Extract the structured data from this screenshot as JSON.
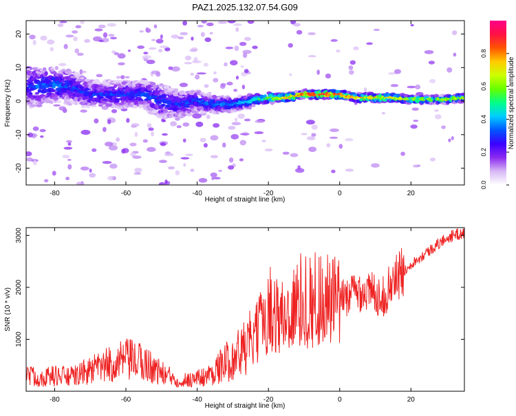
{
  "title": "PAZ1.2025.132.07.54.G09",
  "colors": {
    "snr_line": "#ee2222",
    "axis": "#000000",
    "colormap": [
      "#ffffff",
      "#d7b8f5",
      "#8c2bf0",
      "#3b00ff",
      "#0055ff",
      "#00ccff",
      "#00ff88",
      "#66ff00",
      "#ccff00",
      "#ffcc00",
      "#ff5500",
      "#ff1144",
      "#ff0088"
    ]
  },
  "chart_data": [
    {
      "type": "heatmap",
      "title": "",
      "xlabel": "Height of straight line (km)",
      "ylabel": "Frequency (Hz)",
      "xlim": [
        -88,
        35
      ],
      "ylim": [
        -25,
        24
      ],
      "xticks": [
        -80,
        -60,
        -40,
        -20,
        0,
        20
      ],
      "yticks": [
        -20,
        -10,
        0,
        10,
        20
      ],
      "colorbar": {
        "label": "Normalized spectral amplitude",
        "range": [
          0,
          1
        ],
        "ticks": [
          "0.0",
          "0.2",
          "0.4",
          "0.6",
          "0.8"
        ]
      },
      "ridge": {
        "x": [
          -88,
          -80,
          -75,
          -70,
          -65,
          -60,
          -55,
          -50,
          -45,
          -40,
          -35,
          -30,
          -25,
          -20,
          -15,
          -10,
          -5,
          0,
          5,
          10,
          15,
          20,
          25,
          30,
          35
        ],
        "y": [
          4,
          5,
          4,
          2,
          2,
          2,
          2,
          0,
          -1,
          0,
          -1,
          -1,
          0,
          1,
          1,
          2,
          2,
          2,
          1,
          1,
          1,
          0.5,
          0.5,
          0.5,
          1
        ],
        "amplitude": [
          0.3,
          0.35,
          0.3,
          0.28,
          0.3,
          0.3,
          0.32,
          0.3,
          0.3,
          0.32,
          0.35,
          0.38,
          0.45,
          0.6,
          0.75,
          0.85,
          0.9,
          0.85,
          0.75,
          0.78,
          0.72,
          0.62,
          0.6,
          0.65,
          0.6
        ],
        "spread": [
          6,
          5,
          5,
          4,
          4,
          4,
          4,
          5,
          4,
          3,
          2.5,
          2,
          1.8,
          1.5,
          1.2,
          1.2,
          1.2,
          1.2,
          1.2,
          1.2,
          1.2,
          1.2,
          1.2,
          1.2,
          1.2
        ]
      }
    },
    {
      "type": "line",
      "title": "",
      "xlabel": "Height of straight line (km)",
      "ylabel": "SNR (10 * v/v)",
      "xlim": [
        -88,
        35
      ],
      "ylim": [
        0,
        3150
      ],
      "xticks": [
        -80,
        -60,
        -40,
        -20,
        0,
        20
      ],
      "yticks": [
        1000,
        2000,
        3000
      ],
      "series": [
        {
          "x": [
            -88,
            -85,
            -80,
            -75,
            -70,
            -65,
            -60,
            -55,
            -50,
            -45,
            -40,
            -37,
            -34,
            -30,
            -27,
            -24,
            -22,
            -20,
            -18,
            -16,
            -14,
            -12,
            -10,
            -8,
            -6,
            -4,
            -2,
            0,
            2,
            4,
            6,
            8,
            10,
            12,
            14,
            16,
            18,
            20,
            22,
            24,
            26,
            28,
            30,
            32,
            35
          ],
          "values": [
            350,
            250,
            300,
            280,
            400,
            500,
            600,
            550,
            350,
            200,
            250,
            300,
            450,
            650,
            800,
            1000,
            1300,
            1600,
            1500,
            1400,
            1500,
            1650,
            1800,
            1700,
            1800,
            1750,
            1700,
            1700,
            1850,
            1900,
            1950,
            1900,
            1900,
            1800,
            2000,
            2200,
            2300,
            2450,
            2550,
            2650,
            2750,
            2850,
            2950,
            3000,
            3050
          ]
        }
      ]
    }
  ]
}
